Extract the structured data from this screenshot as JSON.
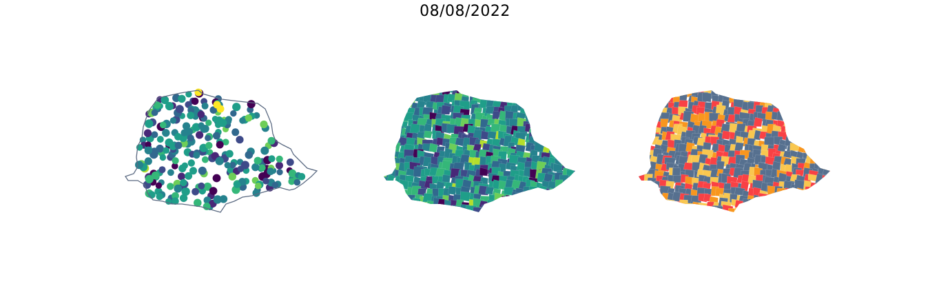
{
  "figure": {
    "title": "08/08/2022"
  },
  "colors": {
    "outline": "#5b6a82",
    "viridis": [
      "#440154",
      "#482878",
      "#3e4a89",
      "#31688e",
      "#26828e",
      "#1f9e89",
      "#35b779",
      "#6ece58",
      "#b5de2b",
      "#fde725"
    ],
    "classes": [
      "#56708f",
      "#f94144",
      "#f8961e",
      "#f9c74f"
    ]
  },
  "panels": [
    {
      "id": "points",
      "kind": "point-map"
    },
    {
      "id": "choropleth",
      "kind": "continuous-choropleth"
    },
    {
      "id": "classes",
      "kind": "categorical-choropleth"
    }
  ]
}
